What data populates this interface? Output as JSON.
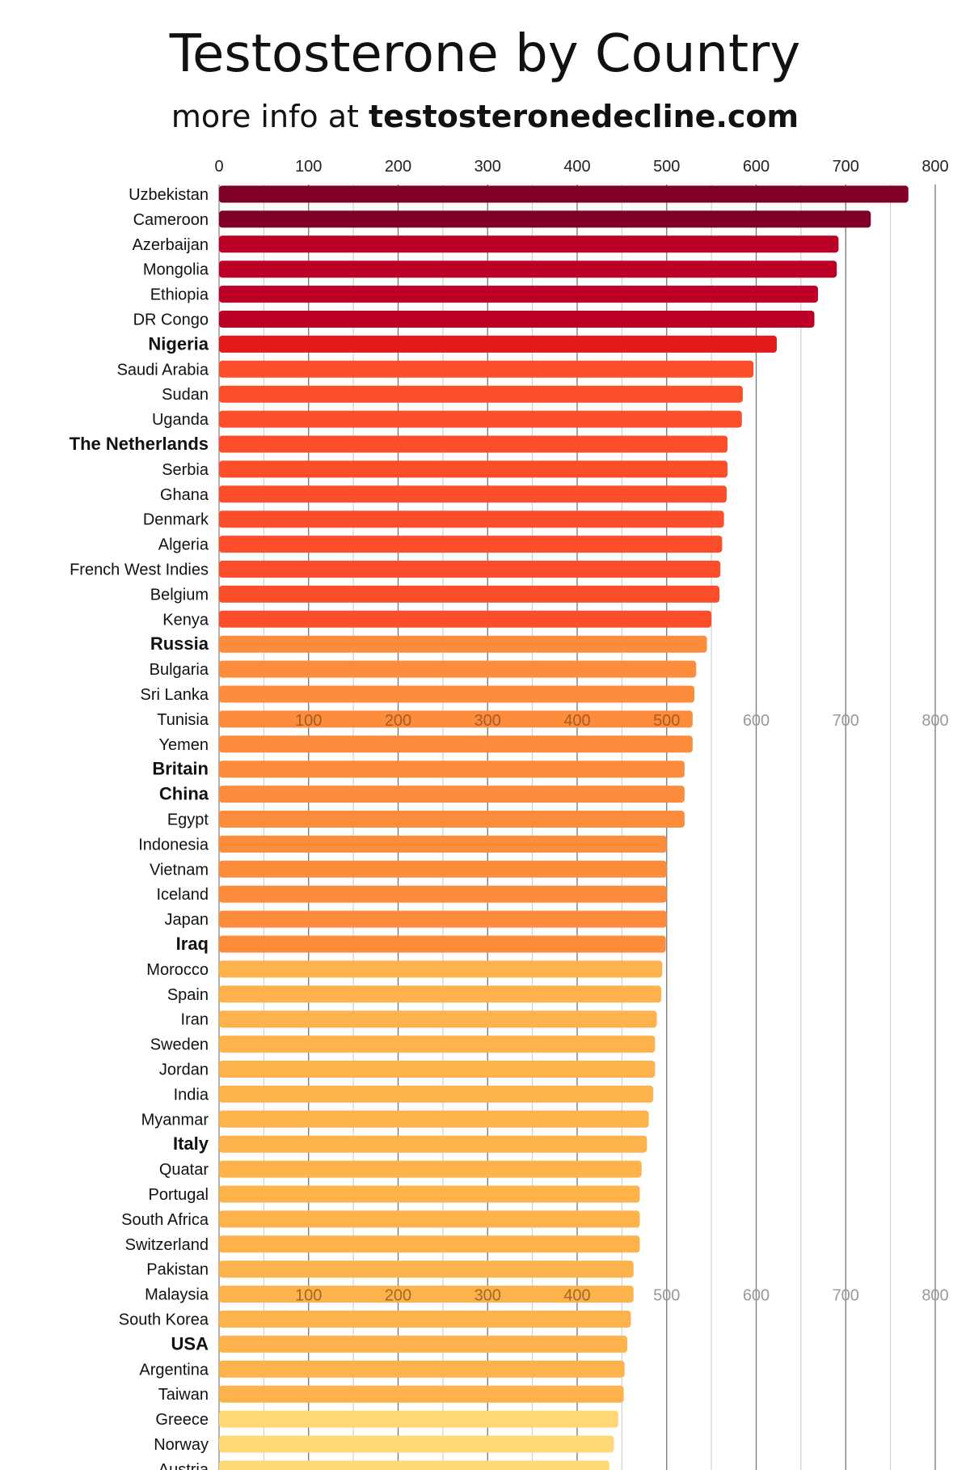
{
  "chart_data": {
    "type": "bar",
    "orientation": "horizontal",
    "title": "Testosterone by Country",
    "subtitle_prefix": "more info at ",
    "subtitle_link": "testosteronedecline.com",
    "xlim": [
      0,
      800
    ],
    "xticks": [
      0,
      100,
      200,
      300,
      400,
      500,
      600,
      700,
      800
    ],
    "grid": true,
    "repeated_tick_rows": [
      "Tunisia",
      "Malaysia"
    ],
    "colors": {
      "maroon": "#7f0027",
      "crimson": "#bd0026",
      "red": "#e31a1c",
      "orange_red": "#fc4e2a",
      "orange": "#fd8d3c",
      "light_orange": "#feb24c",
      "pale": "#fed976"
    },
    "categories": [
      "Uzbekistan",
      "Cameroon",
      "Azerbaijan",
      "Mongolia",
      "Ethiopia",
      "DR Congo",
      "Nigeria",
      "Saudi Arabia",
      "Sudan",
      "Uganda",
      "The Netherlands",
      "Serbia",
      "Ghana",
      "Denmark",
      "Algeria",
      "French West Indies",
      "Belgium",
      "Kenya",
      "Russia",
      "Bulgaria",
      "Sri Lanka",
      "Tunisia",
      "Yemen",
      "Britain",
      "China",
      "Egypt",
      "Indonesia",
      "Vietnam",
      "Iceland",
      "Japan",
      "Iraq",
      "Morocco",
      "Spain",
      "Iran",
      "Sweden",
      "Jordan",
      "India",
      "Myanmar",
      "Italy",
      "Quatar",
      "Portugal",
      "South Africa",
      "Switzerland",
      "Pakistan",
      "Malaysia",
      "South Korea",
      "USA",
      "Argentina",
      "Taiwan",
      "Greece",
      "Norway",
      "Austria"
    ],
    "values": [
      770,
      728,
      692,
      690,
      669,
      665,
      623,
      597,
      585,
      584,
      568,
      568,
      567,
      564,
      562,
      560,
      559,
      550,
      545,
      533,
      531,
      529,
      529,
      520,
      520,
      520,
      500,
      500,
      500,
      500,
      499,
      495,
      494,
      489,
      487,
      487,
      485,
      480,
      478,
      472,
      470,
      470,
      470,
      463,
      463,
      460,
      456,
      453,
      452,
      446,
      441,
      436
    ],
    "bold": [
      "Nigeria",
      "The Netherlands",
      "Russia",
      "Britain",
      "China",
      "Iraq",
      "Italy",
      "USA"
    ],
    "bar_color_group": [
      "maroon",
      "maroon",
      "crimson",
      "crimson",
      "crimson",
      "crimson",
      "red",
      "orange_red",
      "orange_red",
      "orange_red",
      "orange_red",
      "orange_red",
      "orange_red",
      "orange_red",
      "orange_red",
      "orange_red",
      "orange_red",
      "orange_red",
      "orange",
      "orange",
      "orange",
      "orange",
      "orange",
      "orange",
      "orange",
      "orange",
      "orange",
      "orange",
      "orange",
      "orange",
      "orange",
      "light_orange",
      "light_orange",
      "light_orange",
      "light_orange",
      "light_orange",
      "light_orange",
      "light_orange",
      "light_orange",
      "light_orange",
      "light_orange",
      "light_orange",
      "light_orange",
      "light_orange",
      "light_orange",
      "light_orange",
      "light_orange",
      "light_orange",
      "light_orange",
      "pale",
      "pale",
      "pale"
    ]
  }
}
